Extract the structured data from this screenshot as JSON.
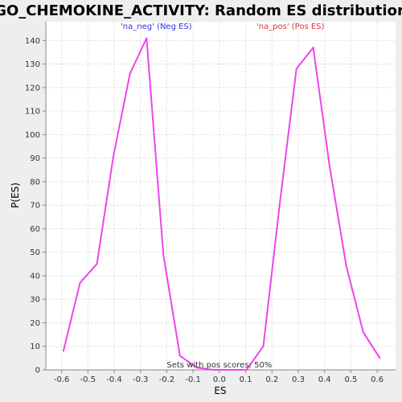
{
  "chart_data": {
    "type": "line",
    "title": "GO_CHEMOKINE_ACTIVITY: Random ES distribution",
    "xlabel": "ES",
    "ylabel": "P(ES)",
    "xlim": [
      -0.66,
      0.67
    ],
    "ylim": [
      0,
      148
    ],
    "grid": true,
    "line_color": "#ee44ee",
    "x_ticks": [
      -0.6,
      -0.5,
      -0.4,
      -0.3,
      -0.2,
      -0.1,
      0.0,
      0.1,
      0.2,
      0.3,
      0.4,
      0.5,
      0.6
    ],
    "x_tick_labels": [
      "-0.6",
      "-0.5",
      "-0.4",
      "-0.3",
      "-0.2",
      "-0.1",
      "0.0",
      "0.1",
      "0.2",
      "0.3",
      "0.4",
      "0.5",
      "0.6"
    ],
    "y_ticks": [
      0,
      10,
      20,
      30,
      40,
      50,
      60,
      70,
      80,
      90,
      100,
      110,
      120,
      130,
      140
    ],
    "y_tick_labels": [
      "0",
      "10",
      "20",
      "30",
      "40",
      "50",
      "60",
      "70",
      "80",
      "90",
      "100",
      "110",
      "120",
      "130",
      "140"
    ],
    "series": [
      {
        "x": [
          -0.593,
          -0.53,
          -0.466,
          -0.403,
          -0.34,
          -0.277,
          -0.213,
          -0.15,
          -0.087,
          -0.023,
          0.04,
          0.103,
          0.167,
          0.23,
          0.293,
          0.357,
          0.42,
          0.483,
          0.547,
          0.61
        ],
        "y": [
          8,
          37,
          45,
          91,
          126,
          141,
          49,
          6,
          1,
          0,
          0,
          0,
          10,
          71,
          128,
          137,
          86,
          44,
          16,
          5
        ]
      }
    ],
    "annotations": [
      {
        "text": "'na_neg' (Neg ES)",
        "x": -0.24,
        "y": 145,
        "color": "#3333dd"
      },
      {
        "text": "'na_pos' (Pos ES)",
        "x": 0.27,
        "y": 145,
        "color": "#dd3333"
      },
      {
        "text": "Sets with pos scores: 50%",
        "x": 0.0,
        "y": 1,
        "color": "#333333"
      }
    ]
  }
}
